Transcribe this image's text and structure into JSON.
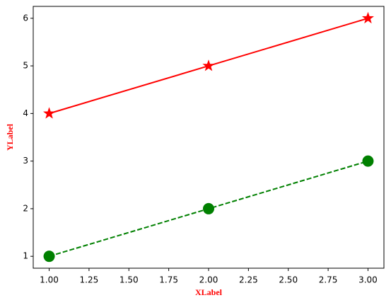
{
  "chart_data": {
    "type": "line",
    "x_label": "XLabel",
    "y_label": "YLabel",
    "x": [
      1,
      2,
      3
    ],
    "series": [
      {
        "color": "#ff0000",
        "values": [
          4,
          5,
          6
        ],
        "linestyle": "solid",
        "marker": "star"
      },
      {
        "color": "#008000",
        "values": [
          1,
          2,
          3
        ],
        "linestyle": "dashed",
        "marker": "circle"
      }
    ],
    "xlim": [
      0.9,
      3.1
    ],
    "ylim": [
      0.75,
      6.25
    ],
    "xticks": [
      {
        "value": 1,
        "label": "1.00"
      },
      {
        "value": 1.25,
        "label": "1.25"
      },
      {
        "value": 1.5,
        "label": "1.50"
      },
      {
        "value": 1.75,
        "label": "1.75"
      },
      {
        "value": 2,
        "label": "2.00"
      },
      {
        "value": 2.25,
        "label": "2.25"
      },
      {
        "value": 2.5,
        "label": "2.50"
      },
      {
        "value": 2.75,
        "label": "2.75"
      },
      {
        "value": 3,
        "label": "3.00"
      }
    ],
    "yticks": [
      1,
      2,
      3,
      4,
      5,
      6
    ],
    "grid": false
  }
}
